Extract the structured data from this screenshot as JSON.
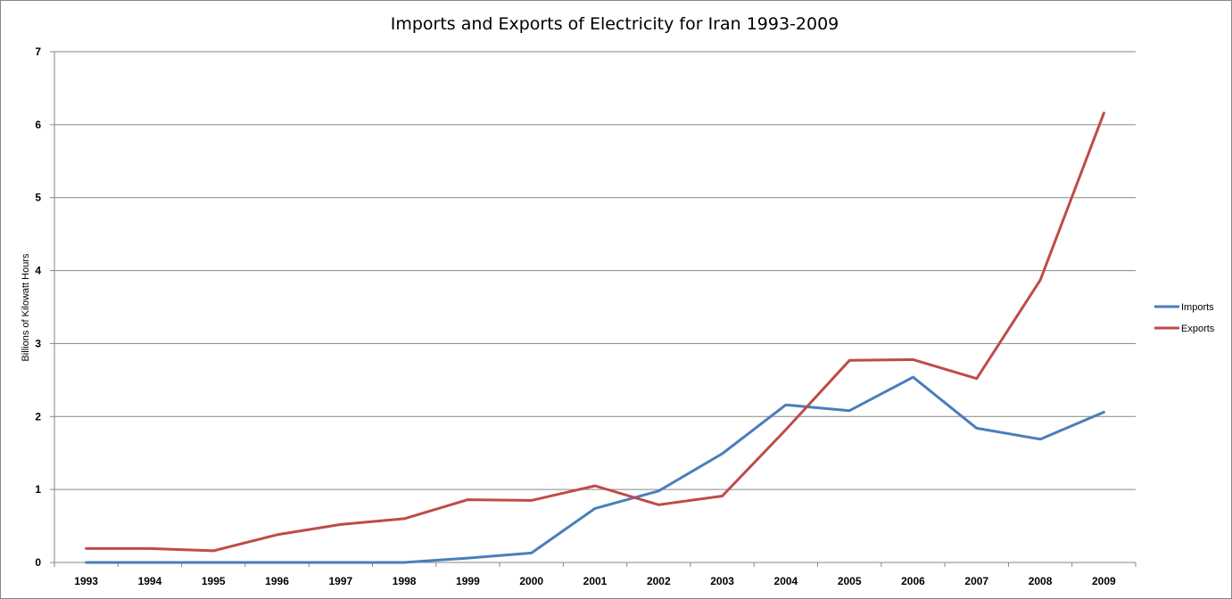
{
  "chart_data": {
    "type": "line",
    "title": "Imports and Exports of Electricity for Iran 1993-2009",
    "xlabel": "",
    "ylabel": "Billions of Kilowatt Hours",
    "categories": [
      "1993",
      "1994",
      "1995",
      "1996",
      "1997",
      "1998",
      "1999",
      "2000",
      "2001",
      "2002",
      "2003",
      "2004",
      "2005",
      "2006",
      "2007",
      "2008",
      "2009"
    ],
    "ylim": [
      0,
      7
    ],
    "yticks": [
      "0",
      "1",
      "2",
      "3",
      "4",
      "5",
      "6",
      "7"
    ],
    "grid": true,
    "legend_position": "right",
    "series": [
      {
        "name": "Imports",
        "color": "#4a7ebb",
        "values": [
          0,
          0,
          0,
          0,
          0,
          0,
          0.06,
          0.13,
          0.74,
          0.98,
          1.49,
          2.16,
          2.08,
          2.54,
          1.84,
          1.69,
          2.06
        ]
      },
      {
        "name": "Exports",
        "color": "#be4b48",
        "values": [
          0.19,
          0.19,
          0.16,
          0.38,
          0.52,
          0.6,
          0.86,
          0.85,
          1.05,
          0.79,
          0.91,
          1.82,
          2.77,
          2.78,
          2.52,
          3.87,
          6.16
        ]
      }
    ]
  }
}
